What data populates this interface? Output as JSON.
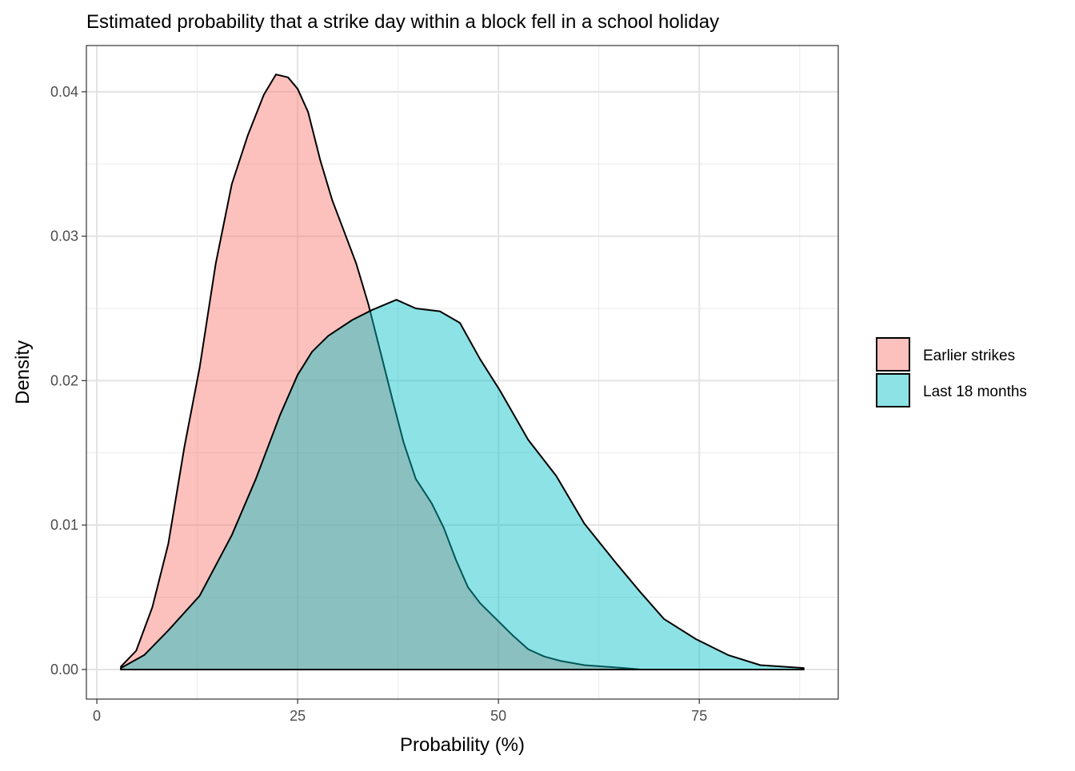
{
  "chart_data": {
    "type": "area",
    "title": "Estimated probability that a strike day within a block fell in a school holiday",
    "xlabel": "Probability (%)",
    "ylabel": "Density",
    "xlim": [
      -1.3,
      92.3
    ],
    "ylim": [
      -0.00205,
      0.0432
    ],
    "xticks": [
      0,
      25,
      50,
      75
    ],
    "xtick_labels": [
      "0",
      "25",
      "50",
      "75"
    ],
    "yticks": [
      0,
      0.01,
      0.02,
      0.03,
      0.04
    ],
    "ytick_labels": [
      "0.00",
      "0.01",
      "0.02",
      "0.03",
      "0.04"
    ],
    "grid": true,
    "legend_position": "right",
    "series": [
      {
        "name": "Earlier strikes",
        "color": "#F8766D",
        "x": [
          3.0,
          4.9,
          6.9,
          8.9,
          10.9,
          12.8,
          14.8,
          16.8,
          18.8,
          20.8,
          22.3,
          23.8,
          25.0,
          26.3,
          27.8,
          29.3,
          30.8,
          32.3,
          33.8,
          35.3,
          36.8,
          38.2,
          39.7,
          41.7,
          43.2,
          44.7,
          46.2,
          47.7,
          49.7,
          51.7,
          53.7,
          55.7,
          57.7,
          60.7,
          65.6,
          67.6
        ],
        "y": [
          0.0002,
          0.0013,
          0.0043,
          0.0087,
          0.0154,
          0.0209,
          0.0281,
          0.0336,
          0.037,
          0.0398,
          0.0412,
          0.041,
          0.0402,
          0.0386,
          0.0353,
          0.0325,
          0.0303,
          0.0281,
          0.0253,
          0.022,
          0.0187,
          0.0157,
          0.0132,
          0.0115,
          0.0098,
          0.0076,
          0.0057,
          0.0046,
          0.0035,
          0.0024,
          0.0014,
          0.0009,
          0.0006,
          0.0003,
          0.0001,
          0.0
        ]
      },
      {
        "name": "Last 18 months",
        "color": "#00BFC4",
        "x": [
          3.0,
          5.9,
          8.9,
          12.8,
          16.8,
          19.8,
          22.8,
          25.0,
          26.8,
          28.8,
          31.8,
          34.3,
          37.3,
          39.7,
          42.7,
          45.2,
          47.7,
          50.2,
          53.7,
          57.2,
          60.7,
          64.6,
          67.6,
          70.6,
          74.6,
          78.6,
          82.6,
          88.0
        ],
        "y": [
          0.0001,
          0.001,
          0.0027,
          0.0051,
          0.0093,
          0.0132,
          0.0176,
          0.0204,
          0.022,
          0.0231,
          0.0242,
          0.0249,
          0.0256,
          0.025,
          0.0248,
          0.024,
          0.0215,
          0.0193,
          0.0159,
          0.0134,
          0.0101,
          0.0074,
          0.0054,
          0.0035,
          0.0021,
          0.001,
          0.0003,
          0.0001
        ]
      }
    ]
  }
}
